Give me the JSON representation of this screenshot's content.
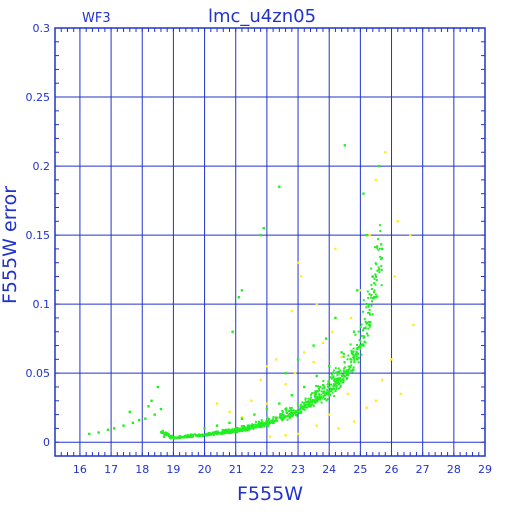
{
  "chart_data": {
    "type": "scatter",
    "title": "lmc_u4zn05",
    "corner_label": "WF3",
    "xlabel": "F555W",
    "ylabel": "F555W error",
    "xlim": [
      15.2,
      29
    ],
    "ylim": [
      -0.01,
      0.3
    ],
    "xticks": [
      16,
      17,
      18,
      19,
      20,
      21,
      22,
      23,
      24,
      25,
      26,
      27,
      28,
      29
    ],
    "yticks": [
      0,
      0.05,
      0.1,
      0.15,
      0.2,
      0.25,
      0.3
    ],
    "ytick_labels": [
      "0",
      "0.05",
      "0.1",
      "0.15",
      "0.2",
      "0.25",
      "0.3"
    ],
    "grid": true,
    "colors": {
      "axis": "#2233cc",
      "grid": "#2233cc",
      "green": "#22ee22",
      "yellow": "#ffee22"
    },
    "series": [
      {
        "color": "green",
        "trend": {
          "x": [
            16.2,
            17.0,
            18.0,
            19.0,
            20.0,
            21.0,
            22.0,
            23.0,
            24.0,
            24.5,
            25.0,
            25.3,
            25.6
          ],
          "y": [
            0.006,
            0.009,
            0.014,
            0.003,
            0.005,
            0.008,
            0.013,
            0.022,
            0.036,
            0.048,
            0.068,
            0.09,
            0.125
          ]
        },
        "points": [
          [
            16.3,
            0.006
          ],
          [
            16.6,
            0.007
          ],
          [
            16.9,
            0.009
          ],
          [
            17.1,
            0.01
          ],
          [
            17.4,
            0.012
          ],
          [
            17.7,
            0.014
          ],
          [
            17.9,
            0.016
          ],
          [
            18.1,
            0.017
          ],
          [
            18.4,
            0.02
          ],
          [
            18.6,
            0.024
          ],
          [
            18.2,
            0.026
          ],
          [
            17.6,
            0.022
          ],
          [
            18.7,
            0.004
          ],
          [
            18.9,
            0.003
          ],
          [
            19.2,
            0.004
          ],
          [
            19.5,
            0.004
          ],
          [
            19.8,
            0.005
          ],
          [
            20.1,
            0.005
          ],
          [
            20.4,
            0.006
          ],
          [
            20.7,
            0.007
          ],
          [
            21.0,
            0.008
          ],
          [
            21.3,
            0.009
          ],
          [
            21.6,
            0.011
          ],
          [
            21.9,
            0.012
          ],
          [
            22.2,
            0.014
          ],
          [
            22.5,
            0.016
          ],
          [
            22.8,
            0.019
          ],
          [
            23.1,
            0.022
          ],
          [
            23.4,
            0.026
          ],
          [
            23.7,
            0.031
          ],
          [
            24.0,
            0.036
          ],
          [
            24.3,
            0.042
          ],
          [
            24.6,
            0.05
          ],
          [
            24.9,
            0.06
          ],
          [
            25.1,
            0.07
          ],
          [
            25.3,
            0.085
          ],
          [
            25.5,
            0.105
          ],
          [
            25.6,
            0.125
          ],
          [
            25.7,
            0.14
          ],
          [
            25.4,
            0.12
          ],
          [
            25.2,
            0.1
          ],
          [
            24.8,
            0.08
          ],
          [
            24.4,
            0.065
          ],
          [
            24.0,
            0.055
          ],
          [
            23.6,
            0.048
          ],
          [
            23.2,
            0.04
          ],
          [
            22.8,
            0.034
          ],
          [
            22.4,
            0.028
          ],
          [
            22.0,
            0.024
          ],
          [
            21.6,
            0.02
          ],
          [
            21.2,
            0.017
          ],
          [
            20.8,
            0.014
          ],
          [
            20.4,
            0.012
          ],
          [
            20.0,
            0.01
          ],
          [
            21.1,
            0.105
          ],
          [
            21.2,
            0.11
          ],
          [
            20.9,
            0.08
          ],
          [
            21.8,
            0.15
          ],
          [
            21.9,
            0.155
          ],
          [
            22.4,
            0.185
          ],
          [
            24.5,
            0.215
          ],
          [
            25.1,
            0.18
          ],
          [
            25.6,
            0.2
          ],
          [
            25.2,
            0.15
          ],
          [
            24.9,
            0.11
          ],
          [
            24.2,
            0.09
          ],
          [
            23.9,
            0.075
          ],
          [
            23.5,
            0.07
          ],
          [
            23.0,
            0.06
          ],
          [
            22.6,
            0.05
          ],
          [
            18.5,
            0.04
          ],
          [
            18.3,
            0.03
          ]
        ]
      },
      {
        "color": "yellow",
        "points": [
          [
            21.5,
            0.03
          ],
          [
            21.8,
            0.045
          ],
          [
            22.0,
            0.055
          ],
          [
            22.3,
            0.06
          ],
          [
            22.6,
            0.042
          ],
          [
            22.9,
            0.05
          ],
          [
            23.2,
            0.065
          ],
          [
            23.5,
            0.058
          ],
          [
            23.8,
            0.072
          ],
          [
            24.1,
            0.08
          ],
          [
            24.4,
            0.062
          ],
          [
            24.7,
            0.09
          ],
          [
            25.0,
            0.11
          ],
          [
            25.3,
            0.15
          ],
          [
            25.5,
            0.19
          ],
          [
            25.8,
            0.21
          ],
          [
            26.2,
            0.16
          ],
          [
            26.6,
            0.15
          ],
          [
            26.0,
            0.06
          ],
          [
            25.7,
            0.045
          ],
          [
            26.3,
            0.035
          ],
          [
            25.2,
            0.025
          ],
          [
            24.8,
            0.015
          ],
          [
            24.3,
            0.01
          ],
          [
            23.6,
            0.012
          ],
          [
            23.0,
            0.006
          ],
          [
            22.6,
            0.005
          ],
          [
            22.1,
            0.004
          ],
          [
            20.8,
            0.022
          ],
          [
            20.4,
            0.028
          ],
          [
            22.8,
            0.095
          ],
          [
            23.1,
            0.12
          ],
          [
            23.6,
            0.1
          ],
          [
            24.2,
            0.14
          ],
          [
            23.0,
            0.13
          ],
          [
            26.1,
            0.12
          ],
          [
            26.7,
            0.085
          ],
          [
            22.0,
            0.028
          ],
          [
            21.2,
            0.018
          ],
          [
            24.0,
            0.02
          ],
          [
            25.5,
            0.03
          ],
          [
            24.6,
            0.035
          ]
        ]
      }
    ]
  }
}
